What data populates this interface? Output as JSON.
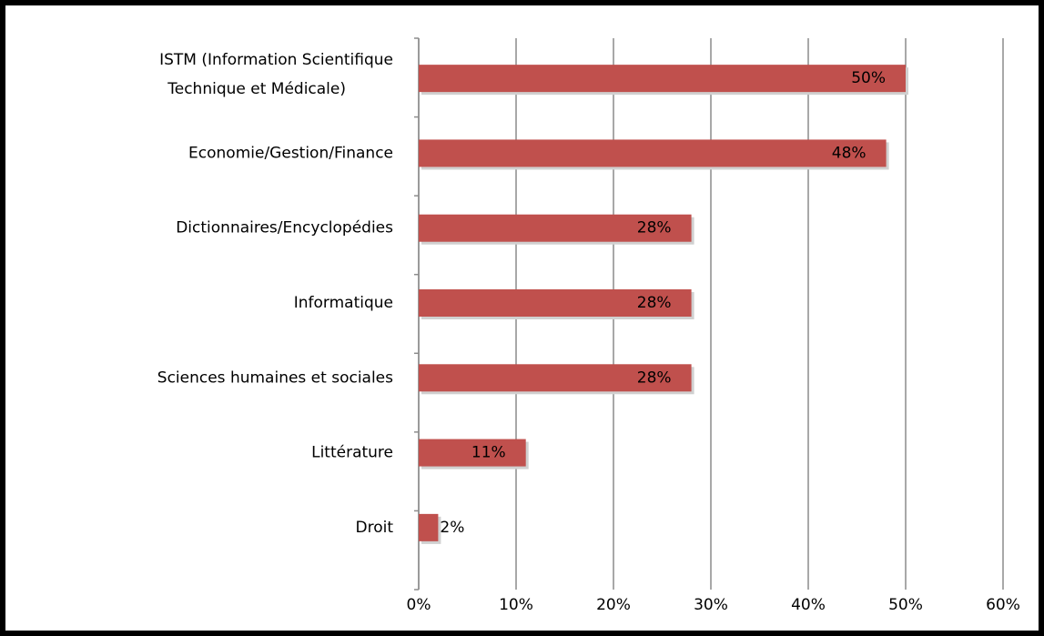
{
  "chart_data": {
    "type": "bar",
    "orientation": "horizontal",
    "categories": [
      "ISTM (Information Scientifique\nTechnique et Médicale)",
      "Economie/Gestion/Finance",
      "Dictionnaires/Encyclopédies",
      "Informatique",
      "Sciences humaines et sociales",
      "Littérature",
      "Droit"
    ],
    "values": [
      50,
      48,
      28,
      28,
      28,
      11,
      2
    ],
    "value_labels": [
      "50%",
      "48%",
      "28%",
      "28%",
      "28%",
      "11%",
      "2%"
    ],
    "color": "#c0504d",
    "xlim": [
      0,
      60
    ],
    "xticks": [
      {
        "value": 0,
        "label": "0%"
      },
      {
        "value": 10,
        "label": "10%"
      },
      {
        "value": 20,
        "label": "20%"
      },
      {
        "value": 30,
        "label": "30%"
      },
      {
        "value": 40,
        "label": "40%"
      },
      {
        "value": 50,
        "label": "50%"
      },
      {
        "value": 60,
        "label": "60%"
      }
    ],
    "grid": true
  }
}
